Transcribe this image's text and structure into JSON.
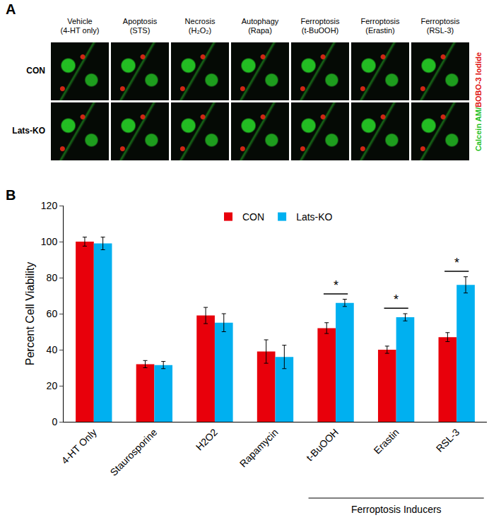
{
  "panel_a": {
    "letter": "A",
    "columns": [
      "Vehicle (4-HT only)",
      "Apoptosis (STS)",
      "Necrosis (H₂O₂)",
      "Autophagy (Rapa)",
      "Ferroptosis (t-BuOOH)",
      "Ferroptosis (Erastin)",
      "Ferroptosis (RSL-3)"
    ],
    "rows": [
      "CON",
      "Lats-KO"
    ],
    "stain_labels": [
      {
        "text": "Calcein AM/",
        "color": "#1fbf1f"
      },
      {
        "text": "BOBO-3 Iodide",
        "color": "#e01010"
      }
    ]
  },
  "panel_b_letter": "B",
  "chart_data": {
    "type": "bar",
    "y_label": "Percent Cell Viability",
    "categories": [
      "4-HT Only",
      "Staurosporine",
      "H2O2",
      "Rapamycin",
      "t-BuOOH",
      "Erastin",
      "RSL-3"
    ],
    "series": [
      {
        "name": "CON",
        "color": "#e8000b",
        "values": [
          100,
          32,
          59,
          39,
          52,
          40,
          47
        ],
        "errors": [
          2.5,
          2,
          4.5,
          6.5,
          3,
          2,
          2.5
        ]
      },
      {
        "name": "Lats-KO",
        "color": "#00b0f0",
        "values": [
          99,
          31.5,
          55,
          36,
          66,
          58,
          76
        ],
        "errors": [
          3.5,
          2,
          5,
          6.5,
          2,
          2,
          4.5
        ]
      }
    ],
    "ylim": [
      0,
      120
    ],
    "yticks": [
      0,
      20,
      40,
      60,
      80,
      100,
      120
    ],
    "grid": false,
    "legend": "top",
    "annotations": [
      {
        "text": "*",
        "category": "t-BuOOH"
      },
      {
        "text": "*",
        "category": "Erastin"
      },
      {
        "text": "*",
        "category": "RSL-3"
      }
    ],
    "group_label": {
      "text": "Ferroptosis Inducers",
      "categories": [
        "t-BuOOH",
        "Erastin",
        "RSL-3"
      ]
    }
  }
}
